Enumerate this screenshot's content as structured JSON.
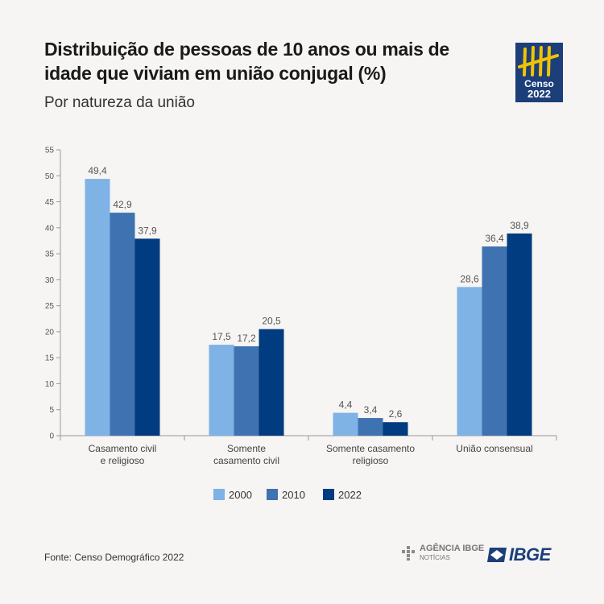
{
  "header": {
    "title": "Distribuição de pessoas de 10 anos ou mais de idade que viviam em união conjugal (%)",
    "subtitle": "Por natureza da união"
  },
  "logo": {
    "text_line1": "Censo",
    "text_line2": "2022",
    "color": "#1c3f7a",
    "accent": "#f2c400"
  },
  "footer": {
    "source": "Fonte: Censo Demográfico 2022",
    "agencia_main": "AGÊNCIA IBGE",
    "agencia_sub": "NOTÍCIAS",
    "ibge": "IBGE"
  },
  "chart_data": {
    "type": "bar",
    "categories": [
      [
        "Casamento civil",
        "e religioso"
      ],
      [
        "Somente",
        "casamento civil"
      ],
      [
        "Somente casamento",
        "religioso"
      ],
      [
        "União consensual"
      ]
    ],
    "series": [
      {
        "name": "2000",
        "color": "#7fb2e5",
        "values": [
          49.4,
          17.5,
          4.4,
          28.6
        ]
      },
      {
        "name": "2010",
        "color": "#3f72b0",
        "values": [
          42.9,
          17.2,
          3.4,
          36.4
        ]
      },
      {
        "name": "2022",
        "color": "#003c7f",
        "values": [
          37.9,
          20.5,
          2.6,
          38.9
        ]
      }
    ],
    "value_labels": [
      [
        "49,4",
        "17,5",
        "4,4",
        "28,6"
      ],
      [
        "42,9",
        "17,2",
        "3,4",
        "36,4"
      ],
      [
        "37,9",
        "20,5",
        "2,6",
        "38,9"
      ]
    ],
    "yticks": [
      "0",
      "5",
      "10",
      "15",
      "20",
      "25",
      "30",
      "35",
      "40",
      "45",
      "50",
      "55"
    ],
    "ylim": [
      0,
      55
    ],
    "grid": false,
    "legend_position": "bottom"
  }
}
